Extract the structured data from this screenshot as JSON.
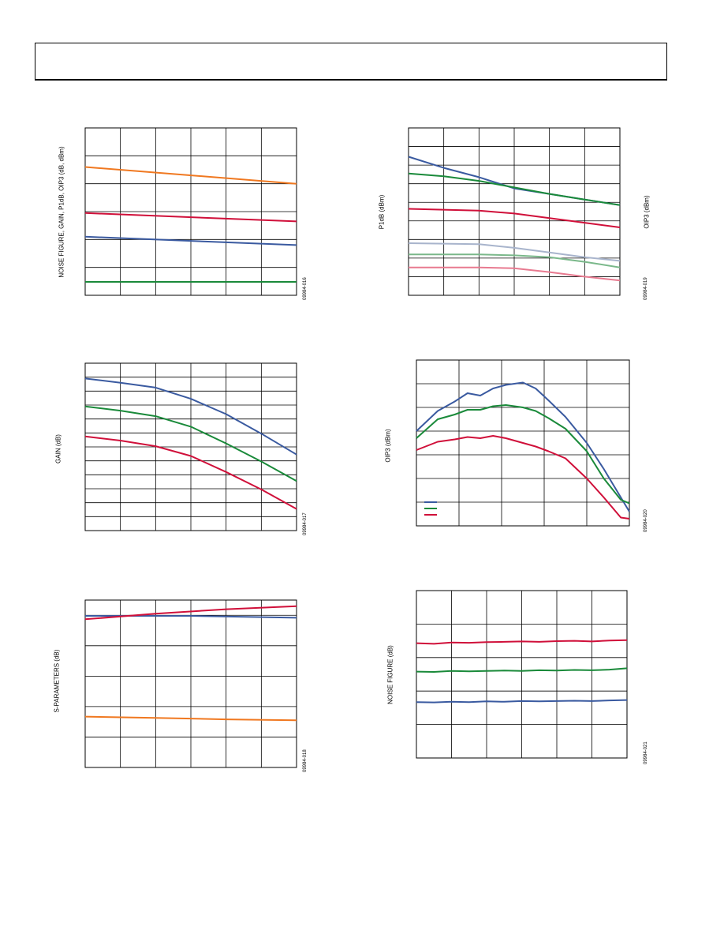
{
  "page": {
    "header_title": ""
  },
  "charts": [
    {
      "id": "c1",
      "type": "line",
      "ylabel": "NOISE FIGURE, GAIN, P1dB, OIP3 (dB, dBm)",
      "fig_id": "09984-016",
      "xlim": [
        0,
        6
      ],
      "ylim": [
        0,
        6
      ],
      "x_gridlines": 6,
      "y_gridlines": 6,
      "grid": true,
      "series": [
        {
          "color": "#f07820",
          "x": [
            0,
            6
          ],
          "y": [
            4.6,
            4.0
          ]
        },
        {
          "color": "#d0103a",
          "x": [
            0,
            6
          ],
          "y": [
            2.95,
            2.65
          ]
        },
        {
          "color": "#3a5aa0",
          "x": [
            0,
            6
          ],
          "y": [
            2.1,
            1.8
          ]
        },
        {
          "color": "#1a8a3a",
          "x": [
            0,
            6
          ],
          "y": [
            0.48,
            0.48
          ]
        }
      ]
    },
    {
      "id": "c2",
      "type": "line",
      "ylabel": "P1dB (dBm)",
      "ylabel_right": "OIP3 (dBm)",
      "fig_id": "09984-019",
      "xlim": [
        0,
        6
      ],
      "ylim": [
        0,
        9
      ],
      "x_gridlines": 6,
      "y_gridlines": 9,
      "grid": true,
      "series": [
        {
          "color": "#3a5aa0",
          "x": [
            0,
            1,
            2,
            3,
            4,
            5,
            6
          ],
          "y": [
            7.45,
            6.85,
            6.35,
            5.75,
            5.45,
            5.15,
            4.85
          ]
        },
        {
          "color": "#1a8a3a",
          "x": [
            0,
            1,
            2,
            3,
            4,
            5,
            6
          ],
          "y": [
            6.55,
            6.4,
            6.15,
            5.8,
            5.45,
            5.15,
            4.85
          ]
        },
        {
          "color": "#d0103a",
          "x": [
            0,
            1,
            2,
            3,
            4,
            5,
            6
          ],
          "y": [
            4.65,
            4.6,
            4.55,
            4.4,
            4.15,
            3.9,
            3.65
          ]
        },
        {
          "color": "#a8b4cc",
          "x": [
            0,
            2,
            3,
            4,
            5,
            6
          ],
          "y": [
            2.8,
            2.75,
            2.55,
            2.3,
            2.05,
            1.85
          ]
        },
        {
          "color": "#7ab88a",
          "x": [
            0,
            2,
            3,
            4,
            5,
            6
          ],
          "y": [
            2.2,
            2.2,
            2.15,
            2.05,
            1.8,
            1.5
          ]
        },
        {
          "color": "#e87a90",
          "x": [
            0,
            2,
            3,
            4,
            5,
            6
          ],
          "y": [
            1.5,
            1.5,
            1.45,
            1.25,
            1.0,
            0.8
          ]
        }
      ]
    },
    {
      "id": "c3",
      "type": "line",
      "ylabel": "GAIN (dB)",
      "fig_id": "09984-017",
      "xlim": [
        0,
        6
      ],
      "ylim": [
        0,
        12
      ],
      "x_gridlines": 6,
      "y_gridlines": 12,
      "grid": true,
      "series": [
        {
          "color": "#3a5aa0",
          "x": [
            0,
            1,
            2,
            3,
            4,
            5,
            6
          ],
          "y": [
            10.9,
            10.6,
            10.25,
            9.45,
            8.35,
            6.95,
            5.45
          ]
        },
        {
          "color": "#1a8a3a",
          "x": [
            0,
            1,
            2,
            3,
            4,
            5,
            6
          ],
          "y": [
            8.9,
            8.6,
            8.2,
            7.45,
            6.25,
            4.95,
            3.55
          ]
        },
        {
          "color": "#d0103a",
          "x": [
            0,
            1,
            2,
            3,
            4,
            5,
            6
          ],
          "y": [
            6.75,
            6.45,
            6.05,
            5.35,
            4.2,
            2.95,
            1.55
          ]
        }
      ]
    },
    {
      "id": "c4",
      "type": "line",
      "ylabel": "OIP3 (dBm)",
      "fig_id": "09984-020",
      "xlim": [
        0,
        5
      ],
      "ylim": [
        0,
        7
      ],
      "x_gridlines": 5,
      "y_gridlines": 7,
      "grid": true,
      "legend": {
        "placement": "bottom-left",
        "entries": [
          {
            "name": "",
            "color": "#3a5aa0"
          },
          {
            "name": "",
            "color": "#1a8a3a"
          },
          {
            "name": "",
            "color": "#d0103a"
          }
        ]
      },
      "series": [
        {
          "color": "#3a5aa0",
          "x": [
            0,
            0.5,
            0.9,
            1.2,
            1.5,
            1.8,
            2.1,
            2.5,
            2.8,
            3.1,
            3.5,
            4.0,
            4.4,
            4.8,
            5.0
          ],
          "y": [
            4.0,
            4.85,
            5.25,
            5.6,
            5.5,
            5.8,
            5.95,
            6.05,
            5.8,
            5.3,
            4.6,
            3.5,
            2.4,
            1.2,
            0.6
          ]
        },
        {
          "color": "#1a8a3a",
          "x": [
            0,
            0.5,
            0.9,
            1.2,
            1.5,
            1.8,
            2.1,
            2.5,
            2.8,
            3.1,
            3.5,
            4.0,
            4.4,
            4.8,
            5.0
          ],
          "y": [
            3.7,
            4.5,
            4.7,
            4.9,
            4.9,
            5.05,
            5.1,
            5.0,
            4.85,
            4.55,
            4.1,
            3.15,
            2.0,
            1.1,
            0.95
          ]
        },
        {
          "color": "#d0103a",
          "x": [
            0,
            0.5,
            0.9,
            1.2,
            1.5,
            1.8,
            2.1,
            2.5,
            2.8,
            3.1,
            3.5,
            4.0,
            4.4,
            4.8,
            5.0
          ],
          "y": [
            3.2,
            3.55,
            3.65,
            3.75,
            3.7,
            3.8,
            3.7,
            3.5,
            3.35,
            3.15,
            2.85,
            2.0,
            1.2,
            0.35,
            0.3
          ]
        }
      ]
    },
    {
      "id": "c5",
      "type": "line",
      "ylabel": "S-PARAMETERS (dB)",
      "fig_id": "09984-018",
      "xlim": [
        0,
        6
      ],
      "ylim": [
        0,
        5.5
      ],
      "x_gridlines": 6,
      "y_gridlines": 5.5,
      "grid": true,
      "series": [
        {
          "color": "#3a5aa0",
          "x": [
            0,
            3,
            6
          ],
          "y": [
            4.98,
            4.98,
            4.92
          ]
        },
        {
          "color": "#d0103a",
          "x": [
            0,
            2,
            4,
            6
          ],
          "y": [
            4.87,
            5.05,
            5.2,
            5.3
          ]
        },
        {
          "color": "#f07820",
          "x": [
            0,
            2,
            4,
            6
          ],
          "y": [
            1.67,
            1.63,
            1.58,
            1.55
          ]
        }
      ]
    },
    {
      "id": "c6",
      "type": "line",
      "ylabel": "NOISE FIGURE (dB)",
      "fig_id": "09984-021",
      "xlim": [
        0,
        6
      ],
      "ylim": [
        0,
        5
      ],
      "x_gridlines": 6,
      "y_gridlines": 5,
      "grid": true,
      "series": [
        {
          "color": "#d0103a",
          "x": [
            0,
            0.5,
            1,
            1.5,
            2,
            2.5,
            3,
            3.5,
            4,
            4.5,
            5,
            5.5,
            6
          ],
          "y": [
            3.43,
            3.41,
            3.45,
            3.44,
            3.46,
            3.47,
            3.48,
            3.47,
            3.49,
            3.5,
            3.48,
            3.51,
            3.52
          ]
        },
        {
          "color": "#1a8a3a",
          "x": [
            0,
            0.5,
            1,
            1.5,
            2,
            2.5,
            3,
            3.5,
            4,
            4.5,
            5,
            5.5,
            6
          ],
          "y": [
            2.58,
            2.57,
            2.6,
            2.59,
            2.6,
            2.61,
            2.6,
            2.62,
            2.61,
            2.63,
            2.62,
            2.64,
            2.68
          ]
        },
        {
          "color": "#3a5aa0",
          "x": [
            0,
            0.5,
            1,
            1.5,
            2,
            2.5,
            3,
            3.5,
            4,
            4.5,
            5,
            5.5,
            6
          ],
          "y": [
            1.67,
            1.66,
            1.68,
            1.67,
            1.69,
            1.68,
            1.7,
            1.69,
            1.7,
            1.71,
            1.7,
            1.72,
            1.73
          ]
        }
      ]
    }
  ]
}
